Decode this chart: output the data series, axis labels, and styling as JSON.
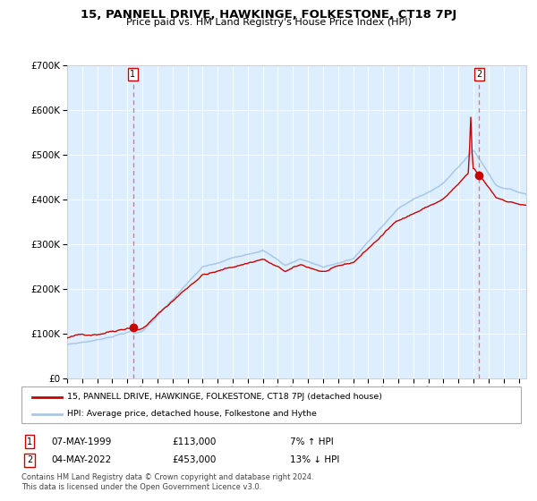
{
  "title": "15, PANNELL DRIVE, HAWKINGE, FOLKESTONE, CT18 7PJ",
  "subtitle": "Price paid vs. HM Land Registry's House Price Index (HPI)",
  "sale1_year": 1999.37,
  "sale1_price": 113000,
  "sale2_year": 2022.37,
  "sale2_price": 453000,
  "legend_line1": "15, PANNELL DRIVE, HAWKINGE, FOLKESTONE, CT18 7PJ (detached house)",
  "legend_line2": "HPI: Average price, detached house, Folkestone and Hythe",
  "footer_line1": "Contains HM Land Registry data © Crown copyright and database right 2024.",
  "footer_line2": "This data is licensed under the Open Government Licence v3.0.",
  "ytick_vals": [
    0,
    100000,
    200000,
    300000,
    400000,
    500000,
    600000,
    700000
  ],
  "ytick_labels": [
    "£0",
    "£100K",
    "£200K",
    "£300K",
    "£400K",
    "£500K",
    "£600K",
    "£700K"
  ],
  "hpi_color": "#a8c8e8",
  "price_color": "#cc0000",
  "plot_bg": "#ddeeff",
  "grid_color": "#ffffff",
  "dashed_color": "#ff6666",
  "xmin": 1995.0,
  "xmax": 2025.5,
  "ymin": 0,
  "ymax": 700000
}
